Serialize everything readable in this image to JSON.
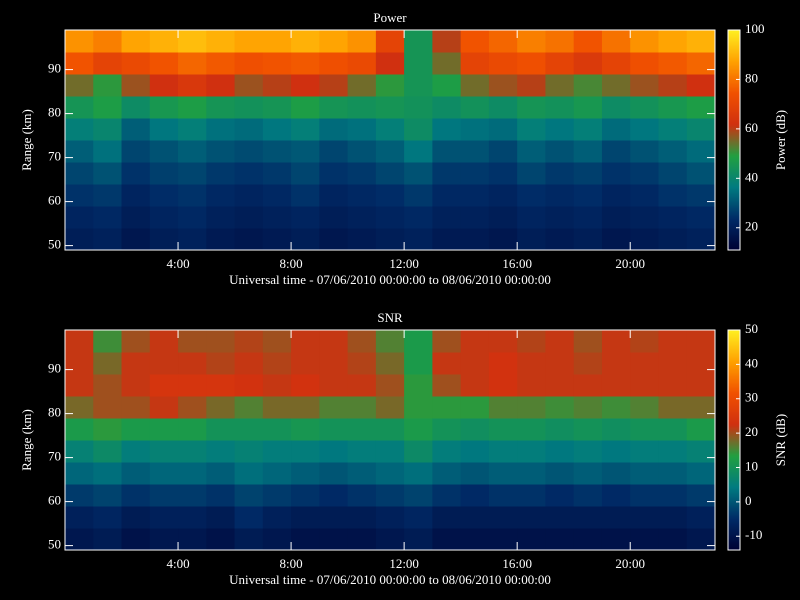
{
  "chart_data": [
    {
      "type": "heatmap",
      "title": "Power",
      "xlabel": "Universal time - 07/06/2010 00:00:00 to 08/06/2010 00:00:00",
      "ylabel": "Range (km)",
      "colorbar_label": "Power (dB)",
      "x": [
        0,
        1,
        2,
        3,
        4,
        5,
        6,
        7,
        8,
        9,
        10,
        11,
        12,
        13,
        14,
        15,
        16,
        17,
        18,
        19,
        20,
        21,
        22
      ],
      "y": [
        51.5,
        56.5,
        61.5,
        66.5,
        71.5,
        76.5,
        81.5,
        86.5,
        91.5,
        96.5
      ],
      "z": [
        [
          20,
          21,
          18,
          20,
          21,
          19,
          18,
          19,
          20,
          18,
          19,
          20,
          21,
          19,
          19,
          18,
          20,
          19,
          20,
          18,
          19,
          20,
          21
        ],
        [
          22,
          23,
          20,
          22,
          23,
          21,
          20,
          21,
          22,
          20,
          21,
          22,
          23,
          21,
          21,
          20,
          22,
          21,
          22,
          20,
          21,
          22,
          23
        ],
        [
          25,
          26,
          22,
          24,
          25,
          23,
          22,
          23,
          25,
          22,
          23,
          24,
          26,
          23,
          23,
          22,
          24,
          23,
          24,
          22,
          23,
          25,
          26
        ],
        [
          28,
          30,
          25,
          27,
          28,
          26,
          25,
          26,
          28,
          25,
          26,
          28,
          30,
          26,
          26,
          25,
          28,
          26,
          27,
          25,
          26,
          28,
          30
        ],
        [
          32,
          35,
          28,
          30,
          32,
          30,
          29,
          30,
          31,
          28,
          30,
          32,
          36,
          30,
          30,
          28,
          32,
          30,
          32,
          28,
          30,
          32,
          34
        ],
        [
          38,
          40,
          32,
          36,
          38,
          35,
          34,
          36,
          38,
          34,
          35,
          38,
          42,
          36,
          35,
          34,
          38,
          36,
          38,
          34,
          36,
          38,
          40
        ],
        [
          45,
          48,
          42,
          46,
          48,
          45,
          44,
          45,
          48,
          45,
          44,
          45,
          44,
          42,
          44,
          42,
          45,
          44,
          46,
          42,
          44,
          46,
          48
        ],
        [
          55,
          50,
          58,
          62,
          65,
          62,
          58,
          60,
          62,
          60,
          55,
          50,
          45,
          48,
          55,
          58,
          60,
          55,
          52,
          55,
          58,
          60,
          62
        ],
        [
          75,
          70,
          72,
          75,
          78,
          76,
          74,
          75,
          76,
          74,
          72,
          62,
          45,
          55,
          70,
          72,
          74,
          70,
          66,
          70,
          74,
          76,
          78
        ],
        [
          85,
          82,
          88,
          90,
          92,
          90,
          88,
          88,
          90,
          88,
          85,
          70,
          45,
          60,
          75,
          78,
          82,
          80,
          75,
          80,
          85,
          88,
          90
        ]
      ],
      "xlim": [
        0,
        23
      ],
      "ylim": [
        49,
        99
      ],
      "zlim": [
        11,
        100
      ],
      "xticks": [
        {
          "value": 4,
          "label": "4:00"
        },
        {
          "value": 8,
          "label": "8:00"
        },
        {
          "value": 12,
          "label": "12:00"
        },
        {
          "value": 16,
          "label": "16:00"
        },
        {
          "value": 20,
          "label": "20:00"
        }
      ],
      "yticks": [
        50,
        60,
        70,
        80,
        90
      ],
      "zticks": [
        20,
        40,
        60,
        80,
        100
      ],
      "colormap": [
        "#000033",
        "#002a66",
        "#007a80",
        "#20a040",
        "#d03010",
        "#f05000",
        "#ffa000",
        "#ffee20"
      ]
    },
    {
      "type": "heatmap",
      "title": "SNR",
      "xlabel": "Universal time - 07/06/2010 00:00:00 to 08/06/2010 00:00:00",
      "ylabel": "Range (km)",
      "colorbar_label": "SNR (dB)",
      "x": [
        0,
        1,
        2,
        3,
        4,
        5,
        6,
        7,
        8,
        9,
        10,
        11,
        12,
        13,
        14,
        15,
        16,
        17,
        18,
        19,
        20,
        21,
        22
      ],
      "y": [
        51.5,
        56.5,
        61.5,
        66.5,
        71.5,
        76.5,
        81.5,
        86.5,
        91.5,
        96.5
      ],
      "z": [
        [
          -9,
          -8,
          -10,
          -9,
          -9,
          -10,
          -8,
          -9,
          -10,
          -10,
          -10,
          -9,
          -8,
          -10,
          -10,
          -10,
          -10,
          -10,
          -10,
          -10,
          -10,
          -10,
          -9
        ],
        [
          -7,
          -6,
          -8,
          -7,
          -7,
          -8,
          -5,
          -7,
          -8,
          -8,
          -8,
          -7,
          -6,
          -8,
          -8,
          -8,
          -8,
          -8,
          -8,
          -8,
          -8,
          -8,
          -7
        ],
        [
          -3,
          -2,
          -4,
          -3,
          -3,
          -4,
          -2,
          -3,
          -4,
          -5,
          -4,
          -3,
          -2,
          -4,
          -5,
          -4,
          -4,
          -5,
          -4,
          -5,
          -4,
          -4,
          -3
        ],
        [
          2,
          3,
          1,
          2,
          2,
          1,
          3,
          2,
          1,
          0,
          1,
          2,
          3,
          1,
          0,
          1,
          1,
          0,
          1,
          0,
          1,
          1,
          2
        ],
        [
          6,
          8,
          5,
          6,
          6,
          5,
          6,
          5,
          5,
          4,
          5,
          5,
          8,
          5,
          4,
          5,
          5,
          4,
          5,
          4,
          5,
          5,
          6
        ],
        [
          12,
          14,
          12,
          12,
          12,
          10,
          10,
          10,
          11,
          10,
          10,
          10,
          12,
          10,
          9,
          10,
          10,
          9,
          10,
          9,
          10,
          10,
          12
        ],
        [
          18,
          20,
          20,
          22,
          20,
          18,
          16,
          18,
          18,
          16,
          16,
          18,
          14,
          14,
          14,
          16,
          16,
          15,
          16,
          15,
          16,
          18,
          18
        ],
        [
          22,
          20,
          22,
          24,
          24,
          24,
          23,
          22,
          23,
          22,
          22,
          20,
          14,
          20,
          22,
          23,
          22,
          22,
          22,
          22,
          22,
          22,
          22
        ],
        [
          22,
          18,
          22,
          22,
          22,
          21,
          22,
          21,
          22,
          22,
          21,
          18,
          12,
          22,
          22,
          23,
          22,
          22,
          21,
          22,
          22,
          22,
          22
        ],
        [
          22,
          15,
          20,
          22,
          20,
          20,
          21,
          20,
          22,
          22,
          20,
          16,
          12,
          20,
          22,
          22,
          21,
          22,
          20,
          22,
          21,
          22,
          22
        ]
      ],
      "xlim": [
        0,
        23
      ],
      "ylim": [
        49,
        99
      ],
      "zlim": [
        -14,
        50
      ],
      "xticks": [
        {
          "value": 4,
          "label": "4:00"
        },
        {
          "value": 8,
          "label": "8:00"
        },
        {
          "value": 12,
          "label": "12:00"
        },
        {
          "value": 16,
          "label": "16:00"
        },
        {
          "value": 20,
          "label": "20:00"
        }
      ],
      "yticks": [
        50,
        60,
        70,
        80,
        90
      ],
      "zticks": [
        -10,
        0,
        10,
        20,
        30,
        40,
        50
      ],
      "colormap": [
        "#000033",
        "#002a66",
        "#007a80",
        "#20a040",
        "#d03010",
        "#f05000",
        "#ffa000",
        "#ffee20"
      ]
    }
  ]
}
